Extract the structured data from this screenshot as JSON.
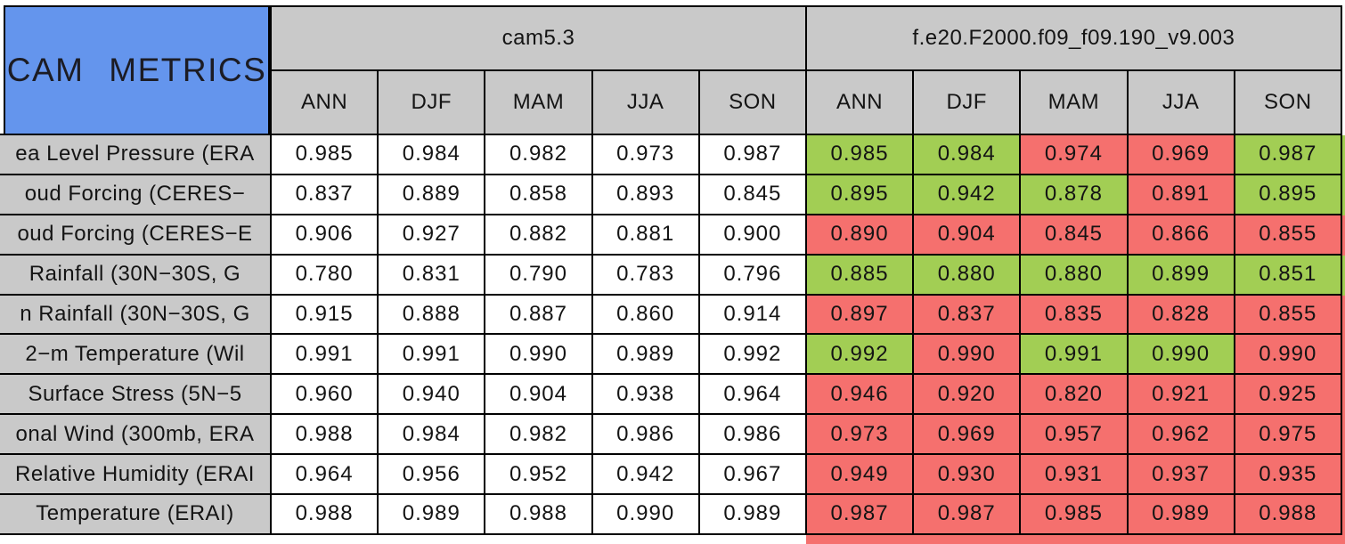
{
  "title": "CAM METRICS",
  "chart_data": {
    "type": "table",
    "title": "CAM METRICS",
    "column_groups": [
      {
        "name": "cam5.3"
      },
      {
        "name": "f.e20.F2000.f09_f09.190_v9.003"
      }
    ],
    "seasons": [
      "ANN",
      "DJF",
      "MAM",
      "JJA",
      "SON"
    ],
    "legend_note_colors": {
      "better": "#a2ce54",
      "worse": "#f5706e"
    },
    "rows": [
      {
        "label": "ea Level Pressure (ERA",
        "cam53": [
          "0.985",
          "0.984",
          "0.982",
          "0.973",
          "0.987"
        ],
        "model2": [
          "0.985",
          "0.984",
          "0.974",
          "0.969",
          "0.987"
        ],
        "status": [
          "better",
          "better",
          "worse",
          "worse",
          "better"
        ]
      },
      {
        "label": "oud Forcing (CERES−",
        "cam53": [
          "0.837",
          "0.889",
          "0.858",
          "0.893",
          "0.845"
        ],
        "model2": [
          "0.895",
          "0.942",
          "0.878",
          "0.891",
          "0.895"
        ],
        "status": [
          "better",
          "better",
          "better",
          "worse",
          "better"
        ]
      },
      {
        "label": "oud Forcing (CERES−E",
        "cam53": [
          "0.906",
          "0.927",
          "0.882",
          "0.881",
          "0.900"
        ],
        "model2": [
          "0.890",
          "0.904",
          "0.845",
          "0.866",
          "0.855"
        ],
        "status": [
          "worse",
          "worse",
          "worse",
          "worse",
          "worse"
        ]
      },
      {
        "label": "Rainfall (30N−30S, G",
        "cam53": [
          "0.780",
          "0.831",
          "0.790",
          "0.783",
          "0.796"
        ],
        "model2": [
          "0.885",
          "0.880",
          "0.880",
          "0.899",
          "0.851"
        ],
        "status": [
          "better",
          "better",
          "better",
          "better",
          "better"
        ]
      },
      {
        "label": "n Rainfall (30N−30S, G",
        "cam53": [
          "0.915",
          "0.888",
          "0.887",
          "0.860",
          "0.914"
        ],
        "model2": [
          "0.897",
          "0.837",
          "0.835",
          "0.828",
          "0.855"
        ],
        "status": [
          "worse",
          "worse",
          "worse",
          "worse",
          "worse"
        ]
      },
      {
        "label": "2−m Temperature (Wil",
        "cam53": [
          "0.991",
          "0.991",
          "0.990",
          "0.989",
          "0.992"
        ],
        "model2": [
          "0.992",
          "0.990",
          "0.991",
          "0.990",
          "0.990"
        ],
        "status": [
          "better",
          "worse",
          "better",
          "better",
          "worse"
        ]
      },
      {
        "label": "Surface Stress (5N−5",
        "cam53": [
          "0.960",
          "0.940",
          "0.904",
          "0.938",
          "0.964"
        ],
        "model2": [
          "0.946",
          "0.920",
          "0.820",
          "0.921",
          "0.925"
        ],
        "status": [
          "worse",
          "worse",
          "worse",
          "worse",
          "worse"
        ]
      },
      {
        "label": "onal Wind (300mb, ERA",
        "cam53": [
          "0.988",
          "0.984",
          "0.982",
          "0.986",
          "0.986"
        ],
        "model2": [
          "0.973",
          "0.969",
          "0.957",
          "0.962",
          "0.975"
        ],
        "status": [
          "worse",
          "worse",
          "worse",
          "worse",
          "worse"
        ]
      },
      {
        "label": "Relative Humidity (ERAI",
        "cam53": [
          "0.964",
          "0.956",
          "0.952",
          "0.942",
          "0.967"
        ],
        "model2": [
          "0.949",
          "0.930",
          "0.931",
          "0.937",
          "0.935"
        ],
        "status": [
          "worse",
          "worse",
          "worse",
          "worse",
          "worse"
        ]
      },
      {
        "label": "Temperature (ERAI)",
        "cam53": [
          "0.988",
          "0.989",
          "0.988",
          "0.990",
          "0.989"
        ],
        "model2": [
          "0.987",
          "0.987",
          "0.985",
          "0.989",
          "0.988"
        ],
        "status": [
          "worse",
          "worse",
          "worse",
          "worse",
          "worse"
        ]
      }
    ]
  },
  "colors": {
    "title_bg": "#6495ed",
    "header_bg": "#c9c9c9",
    "cell_bg": "#ffffff",
    "better": "#a2ce54",
    "worse": "#f5706e",
    "border": "#000000"
  }
}
